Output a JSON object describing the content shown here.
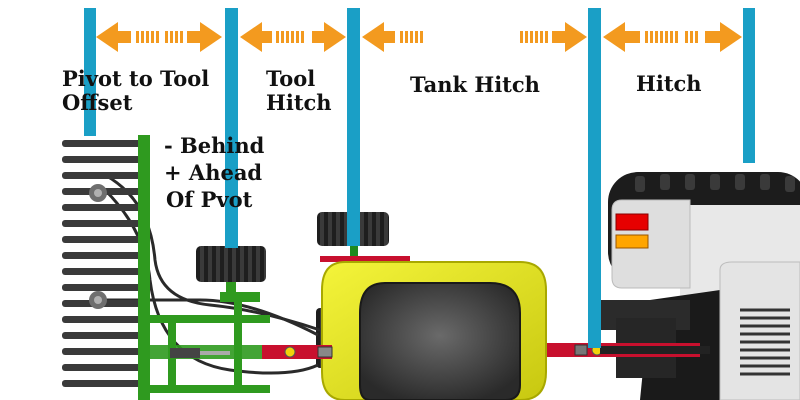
{
  "diagram": {
    "sections": [
      {
        "id": "pivot-to-tool-offset",
        "lines": [
          "Pivot to Tool",
          "Offset"
        ]
      },
      {
        "id": "tool-hitch",
        "lines": [
          "Tool",
          "Hitch"
        ]
      },
      {
        "id": "tank-hitch",
        "lines": [
          "Tank Hitch"
        ]
      },
      {
        "id": "hitch",
        "lines": [
          "Hitch"
        ]
      }
    ],
    "offset_note": [
      "- Behind",
      "+ Ahead",
      "Of Pvot"
    ],
    "colors": {
      "marker_line": "#1a9fc6",
      "arrow": "#f39a1f",
      "implement_green": "#2f9a1f",
      "tank_yellow": "#e3e31a",
      "hitch_red": "#c8102e",
      "tire": "#222222",
      "tractor_gray": "#dcdcdc",
      "light_red": "#e60000",
      "light_amber": "#ffa500"
    },
    "icons": [
      "double-arrow-icon",
      "left-arrow-icon",
      "right-arrow-icon",
      "tire-icon",
      "tank-icon",
      "tractor-icon",
      "planter-icon"
    ]
  }
}
